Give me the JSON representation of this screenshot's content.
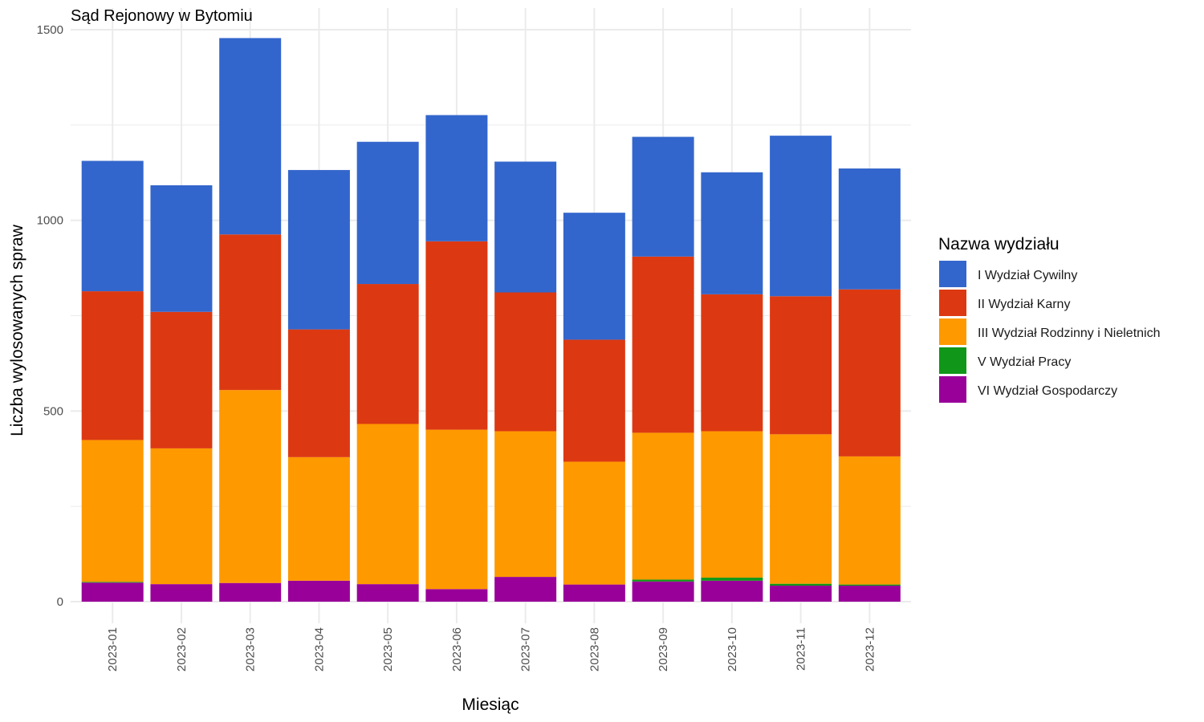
{
  "chart_data": {
    "type": "bar",
    "stacked": true,
    "title": "Sąd Rejonowy w Bytomiu",
    "xlabel": "Miesiąc",
    "ylabel": "Liczba wylosowanych spraw",
    "ylim": [
      0,
      1500
    ],
    "yticks": [
      0,
      500,
      1000,
      1500
    ],
    "grid": true,
    "legend_title": "Nazwa wydziału",
    "legend_position": "right",
    "categories": [
      "2023-01",
      "2023-02",
      "2023-03",
      "2023-04",
      "2023-05",
      "2023-06",
      "2023-07",
      "2023-08",
      "2023-09",
      "2023-10",
      "2023-11",
      "2023-12"
    ],
    "series": [
      {
        "name": "I Wydział Cywilny",
        "color": "#3366cc",
        "values": [
          342,
          332,
          515,
          418,
          373,
          331,
          343,
          333,
          314,
          320,
          421,
          317
        ]
      },
      {
        "name": "II Wydział Karny",
        "color": "#dc3912",
        "values": [
          390,
          358,
          408,
          335,
          367,
          494,
          364,
          320,
          462,
          359,
          362,
          438
        ]
      },
      {
        "name": "III Wydział Rodzinny i Nieletnich",
        "color": "#ff9900",
        "values": [
          372,
          356,
          506,
          324,
          420,
          418,
          382,
          322,
          385,
          384,
          392,
          336
        ]
      },
      {
        "name": "V Wydział Pracy",
        "color": "#109618",
        "values": [
          2,
          0,
          0,
          0,
          0,
          0,
          0,
          0,
          5,
          8,
          5,
          3
        ]
      },
      {
        "name": "VI Wydział Gospodarczy",
        "color": "#990099",
        "values": [
          50,
          46,
          49,
          55,
          46,
          33,
          65,
          45,
          53,
          55,
          42,
          42
        ]
      }
    ]
  }
}
